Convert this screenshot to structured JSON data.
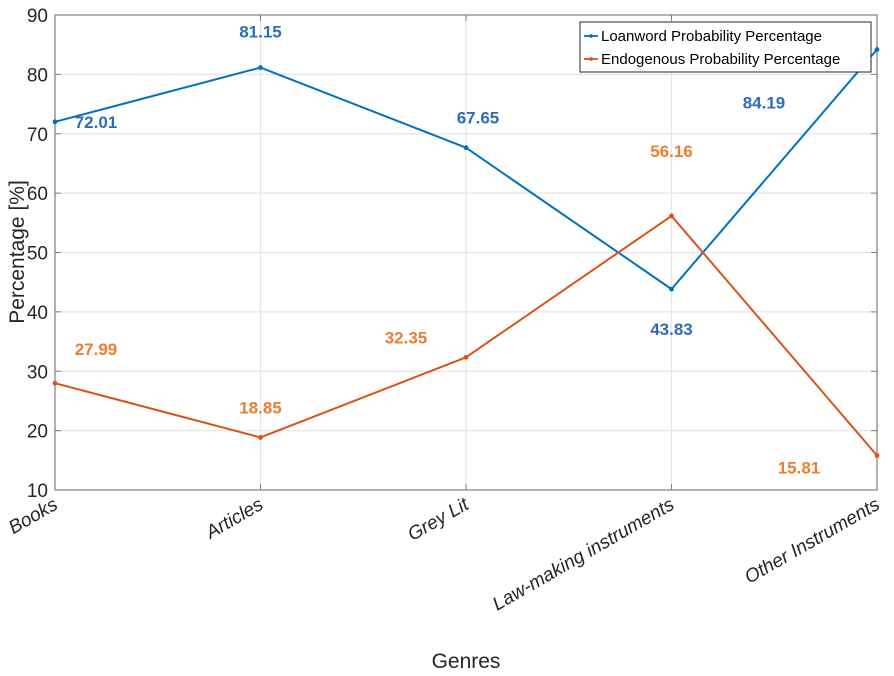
{
  "chart_data": {
    "type": "line",
    "title": "",
    "xlabel": "Genres",
    "ylabel": "Percentage [%]",
    "categories": [
      "Books",
      "Articles",
      "Grey Lit",
      "Law-making instruments",
      "Other Instruments"
    ],
    "ylim": [
      10,
      90
    ],
    "yticks": [
      10,
      20,
      30,
      40,
      50,
      60,
      70,
      80,
      90
    ],
    "grid": true,
    "legend_position": "top-right",
    "series": [
      {
        "name": "Loanword Probability Percentage",
        "color": "#0072BD",
        "label_color": "#2E6DB4",
        "values": [
          72.01,
          81.15,
          67.65,
          43.83,
          84.19
        ],
        "data_labels": [
          "72.01",
          "81.15",
          "67.65",
          "43.83",
          "84.19"
        ]
      },
      {
        "name": "Endogenous Probability Percentage",
        "color": "#D95319",
        "label_color": "#ED7D31",
        "values": [
          27.99,
          18.85,
          32.35,
          56.16,
          15.81
        ],
        "data_labels": [
          "27.99",
          "18.85",
          "32.35",
          "56.16",
          "15.81"
        ]
      }
    ]
  }
}
